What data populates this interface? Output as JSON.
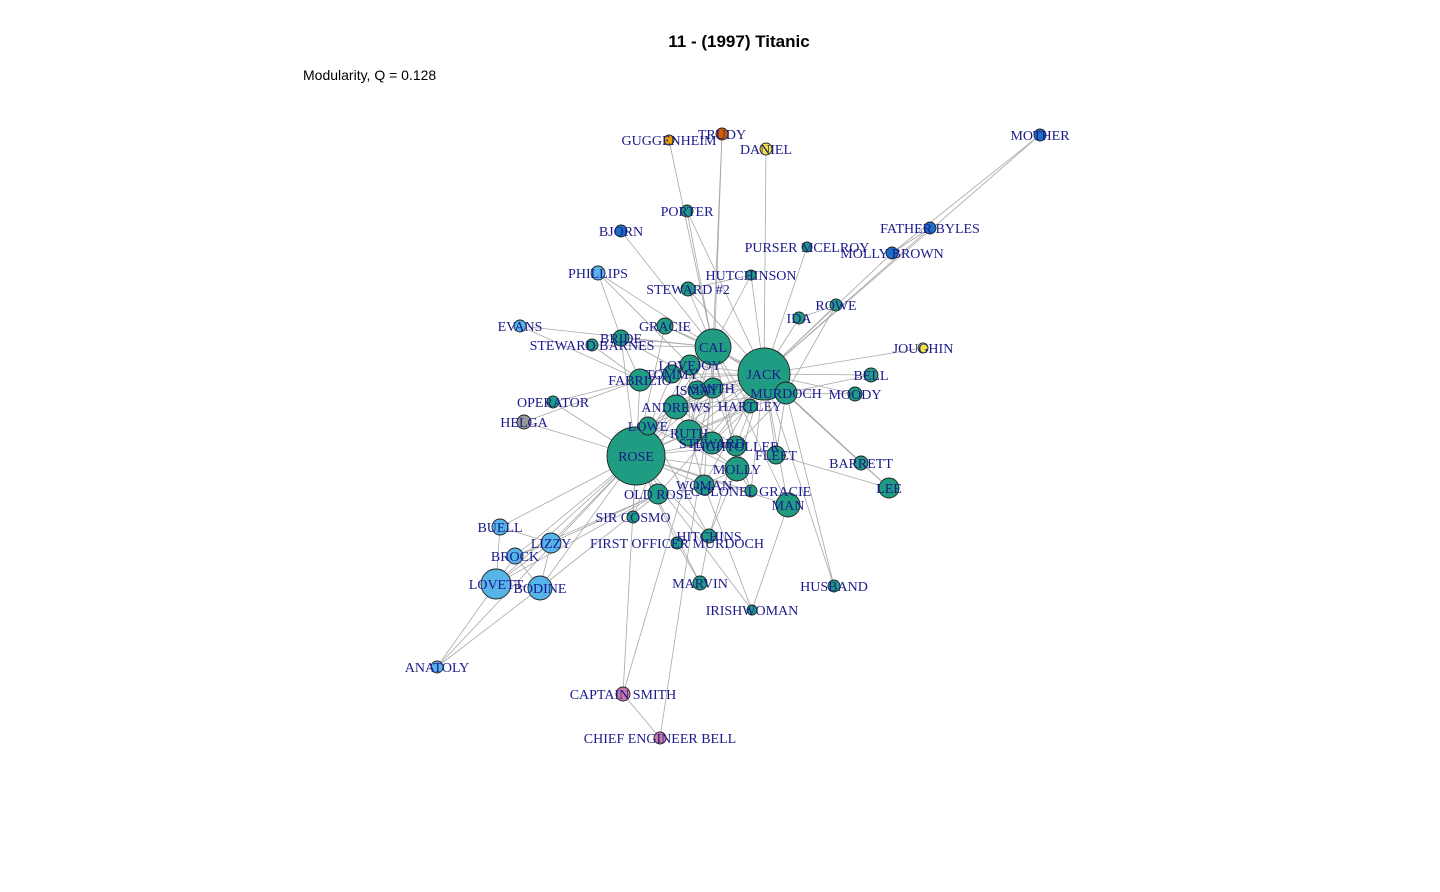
{
  "title": "11 - (1997) Titanic",
  "subtitle": "Modularity, Q = 0.128",
  "colors": {
    "teal": "#1f9c82",
    "blue": "#1b6fc4",
    "lightblue": "#56b4e9",
    "yellow": "#f0e442",
    "orange": "#e69f00",
    "red": "#d55e00",
    "pink": "#cc79a7",
    "gray": "#999999",
    "label": "#1a1a8c",
    "edge": "#a8a8a8"
  },
  "nodes": [
    {
      "id": "GUGGENHEIM",
      "label": "GUGGENHEIM",
      "color": "orange"
    },
    {
      "id": "TRUDY",
      "label": "TRUDY",
      "color": "red"
    },
    {
      "id": "DANIEL",
      "label": "DANIEL",
      "color": "yellow"
    },
    {
      "id": "MOTHER",
      "label": "MOTHER",
      "color": "blue"
    },
    {
      "id": "PORTER",
      "label": "PORTER",
      "color": "teal"
    },
    {
      "id": "BJORN",
      "label": "BJORN",
      "color": "blue"
    },
    {
      "id": "FATHER BYLES",
      "label": "FATHER BYLES",
      "color": "blue"
    },
    {
      "id": "PURSER MCELROY",
      "label": "PURSER MCELROY",
      "color": "teal"
    },
    {
      "id": "MOLLY BROWN",
      "label": "MOLLY BROWN",
      "color": "blue"
    },
    {
      "id": "PHILLIPS",
      "label": "PHILLIPS",
      "color": "lightblue"
    },
    {
      "id": "HUTCHINSON",
      "label": "HUTCHINSON",
      "color": "teal"
    },
    {
      "id": "STEWARD #2",
      "label": "STEWARD #2",
      "color": "teal"
    },
    {
      "id": "ROWE",
      "label": "ROWE",
      "color": "teal"
    },
    {
      "id": "IDA",
      "label": "IDA",
      "color": "teal"
    },
    {
      "id": "EVANS",
      "label": "EVANS",
      "color": "lightblue"
    },
    {
      "id": "GRACIE",
      "label": "GRACIE",
      "color": "teal"
    },
    {
      "id": "BRIDE",
      "label": "BRIDE",
      "color": "teal"
    },
    {
      "id": "STEWARD BARNES",
      "label": "STEWARD BARNES",
      "color": "teal"
    },
    {
      "id": "CAL",
      "label": "CAL",
      "color": "teal"
    },
    {
      "id": "JOUGHIN",
      "label": "JOUGHIN",
      "color": "yellow"
    },
    {
      "id": "LOVEJOY",
      "label": "LOVEJOY",
      "color": "teal"
    },
    {
      "id": "TOMMY",
      "label": "TOMMY",
      "color": "teal"
    },
    {
      "id": "JACK",
      "label": "JACK",
      "color": "teal"
    },
    {
      "id": "BELL",
      "label": "BELL",
      "color": "teal"
    },
    {
      "id": "FABRIZIO",
      "label": "FABRIZIO",
      "color": "teal"
    },
    {
      "id": "SMITH",
      "label": "SMITH",
      "color": "teal"
    },
    {
      "id": "ISMAY",
      "label": "ISMAY",
      "color": "teal"
    },
    {
      "id": "MURDOCH",
      "label": "MURDOCH",
      "color": "teal"
    },
    {
      "id": "MOODY",
      "label": "MOODY",
      "color": "teal"
    },
    {
      "id": "OPERATOR",
      "label": "OPERATOR",
      "color": "teal"
    },
    {
      "id": "ANDREWS",
      "label": "ANDREWS",
      "color": "teal"
    },
    {
      "id": "HARTLEY",
      "label": "HARTLEY",
      "color": "teal"
    },
    {
      "id": "HELGA",
      "label": "HELGA",
      "color": "gray"
    },
    {
      "id": "LOWE",
      "label": "LOWE",
      "color": "teal"
    },
    {
      "id": "RUTH",
      "label": "RUTH",
      "color": "teal"
    },
    {
      "id": "STEWARD",
      "label": "STEWARD",
      "color": "teal"
    },
    {
      "id": "LIGHTOLLER",
      "label": "LIGHTOLLER",
      "color": "teal"
    },
    {
      "id": "FLEET",
      "label": "FLEET",
      "color": "teal"
    },
    {
      "id": "ROSE",
      "label": "ROSE",
      "color": "teal"
    },
    {
      "id": "MOLLY",
      "label": "MOLLY",
      "color": "teal"
    },
    {
      "id": "BARRETT",
      "label": "BARRETT",
      "color": "teal"
    },
    {
      "id": "WOMAN",
      "label": "WOMAN",
      "color": "teal"
    },
    {
      "id": "LEE",
      "label": "LEE",
      "color": "teal"
    },
    {
      "id": "OLD ROSE",
      "label": "OLD ROSE",
      "color": "teal"
    },
    {
      "id": "COLONEL GRACIE",
      "label": "COLONEL GRACIE",
      "color": "teal"
    },
    {
      "id": "MAN",
      "label": "MAN",
      "color": "teal"
    },
    {
      "id": "SIR COSMO",
      "label": "SIR COSMO",
      "color": "teal"
    },
    {
      "id": "BUELL",
      "label": "BUELL",
      "color": "lightblue"
    },
    {
      "id": "LIZZY",
      "label": "LIZZY",
      "color": "lightblue"
    },
    {
      "id": "FIRST OFFICER MURDOCH",
      "label": "FIRST OFFICER MURDOCH",
      "color": "teal"
    },
    {
      "id": "HITCHINS",
      "label": "HITCHINS",
      "color": "teal"
    },
    {
      "id": "BROCK",
      "label": "BROCK",
      "color": "lightblue"
    },
    {
      "id": "LOVETT",
      "label": "LOVETT",
      "color": "lightblue"
    },
    {
      "id": "BODINE",
      "label": "BODINE",
      "color": "lightblue"
    },
    {
      "id": "MARVIN",
      "label": "MARVIN",
      "color": "teal"
    },
    {
      "id": "HUSBAND",
      "label": "HUSBAND",
      "color": "teal"
    },
    {
      "id": "IRISHWOMAN",
      "label": "IRISHWOMAN",
      "color": "teal"
    },
    {
      "id": "ANATOLY",
      "label": "ANATOLY",
      "color": "lightblue"
    },
    {
      "id": "CAPTAIN SMITH",
      "label": "CAPTAIN SMITH",
      "color": "pink"
    },
    {
      "id": "CHIEF ENGINEER BELL",
      "label": "CHIEF ENGINEER BELL",
      "color": "pink"
    }
  ],
  "edges": [
    [
      "ROSE",
      "JACK"
    ],
    [
      "ROSE",
      "CAL"
    ],
    [
      "ROSE",
      "RUTH"
    ],
    [
      "ROSE",
      "LOVEJOY"
    ],
    [
      "ROSE",
      "ANDREWS"
    ],
    [
      "ROSE",
      "MOLLY"
    ],
    [
      "ROSE",
      "FABRIZIO"
    ],
    [
      "ROSE",
      "TOMMY"
    ],
    [
      "ROSE",
      "ISMAY"
    ],
    [
      "ROSE",
      "SMITH"
    ],
    [
      "ROSE",
      "MURDOCH"
    ],
    [
      "ROSE",
      "LOWE"
    ],
    [
      "ROSE",
      "OLD ROSE"
    ],
    [
      "ROSE",
      "LOVETT"
    ],
    [
      "ROSE",
      "BODINE"
    ],
    [
      "ROSE",
      "BROCK"
    ],
    [
      "ROSE",
      "LIZZY"
    ],
    [
      "ROSE",
      "BUELL"
    ],
    [
      "ROSE",
      "ANATOLY"
    ],
    [
      "ROSE",
      "HELGA"
    ],
    [
      "ROSE",
      "OPERATOR"
    ],
    [
      "ROSE",
      "SIR COSMO"
    ],
    [
      "ROSE",
      "FIRST OFFICER MURDOCH"
    ],
    [
      "ROSE",
      "HITCHINS"
    ],
    [
      "ROSE",
      "MAN"
    ],
    [
      "ROSE",
      "WOMAN"
    ],
    [
      "ROSE",
      "STEWARD"
    ],
    [
      "ROSE",
      "LIGHTOLLER"
    ],
    [
      "ROSE",
      "HARTLEY"
    ],
    [
      "ROSE",
      "GRACIE"
    ],
    [
      "ROSE",
      "BRIDE"
    ],
    [
      "ROSE",
      "MARVIN"
    ],
    [
      "ROSE",
      "CAPTAIN SMITH"
    ],
    [
      "ROSE",
      "COLONEL GRACIE"
    ],
    [
      "ROSE",
      "IRISHWOMAN"
    ],
    [
      "JACK",
      "CAL"
    ],
    [
      "JACK",
      "RUTH"
    ],
    [
      "JACK",
      "LOVEJOY"
    ],
    [
      "JACK",
      "FABRIZIO"
    ],
    [
      "JACK",
      "TOMMY"
    ],
    [
      "JACK",
      "ANDREWS"
    ],
    [
      "JACK",
      "MOLLY"
    ],
    [
      "JACK",
      "MURDOCH"
    ],
    [
      "JACK",
      "MOODY"
    ],
    [
      "JACK",
      "HARTLEY"
    ],
    [
      "JACK",
      "BELL"
    ],
    [
      "JACK",
      "ROWE"
    ],
    [
      "JACK",
      "IDA"
    ],
    [
      "JACK",
      "JOUGHIN"
    ],
    [
      "JACK",
      "MOTHER"
    ],
    [
      "JACK",
      "FATHER BYLES"
    ],
    [
      "JACK",
      "MOLLY BROWN"
    ],
    [
      "JACK",
      "PURSER MCELROY"
    ],
    [
      "JACK",
      "HUTCHINSON"
    ],
    [
      "JACK",
      "PORTER"
    ],
    [
      "JACK",
      "DANIEL"
    ],
    [
      "JACK",
      "BARRETT"
    ],
    [
      "JACK",
      "LEE"
    ],
    [
      "JACK",
      "FLEET"
    ],
    [
      "JACK",
      "MAN"
    ],
    [
      "JACK",
      "HUSBAND"
    ],
    [
      "JACK",
      "STEWARD"
    ],
    [
      "JACK",
      "LIGHTOLLER"
    ],
    [
      "JACK",
      "SMITH"
    ],
    [
      "JACK",
      "ISMAY"
    ],
    [
      "JACK",
      "STEWARD #2"
    ],
    [
      "JACK",
      "GRACIE"
    ],
    [
      "JACK",
      "LOWE"
    ],
    [
      "JACK",
      "WOMAN"
    ],
    [
      "JACK",
      "OLD ROSE"
    ],
    [
      "JACK",
      "COLONEL GRACIE"
    ],
    [
      "CAL",
      "RUTH"
    ],
    [
      "CAL",
      "LOVEJOY"
    ],
    [
      "CAL",
      "ANDREWS"
    ],
    [
      "CAL",
      "ISMAY"
    ],
    [
      "CAL",
      "SMITH"
    ],
    [
      "CAL",
      "GUGGENHEIM"
    ],
    [
      "CAL",
      "TRUDY"
    ],
    [
      "CAL",
      "PORTER"
    ],
    [
      "CAL",
      "BJORN"
    ],
    [
      "CAL",
      "PHILLIPS"
    ],
    [
      "CAL",
      "STEWARD #2"
    ],
    [
      "CAL",
      "HUTCHINSON"
    ],
    [
      "CAL",
      "MURDOCH"
    ],
    [
      "CAL",
      "MOLLY"
    ],
    [
      "CAL",
      "GRACIE"
    ],
    [
      "CAL",
      "EVANS"
    ],
    [
      "CAL",
      "BRIDE"
    ],
    [
      "CAL",
      "STEWARD BARNES"
    ],
    [
      "CAL",
      "FABRIZIO"
    ],
    [
      "CAL",
      "TOMMY"
    ],
    [
      "CAL",
      "HARTLEY"
    ],
    [
      "CAL",
      "LIGHTOLLER"
    ],
    [
      "CAL",
      "STEWARD"
    ],
    [
      "CAL",
      "WOMAN"
    ],
    [
      "CAL",
      "MAN"
    ],
    [
      "RUTH",
      "LOVEJOY"
    ],
    [
      "RUTH",
      "MOLLY"
    ],
    [
      "RUTH",
      "ANDREWS"
    ],
    [
      "RUTH",
      "ISMAY"
    ],
    [
      "RUTH",
      "SMITH"
    ],
    [
      "RUTH",
      "LIGHTOLLER"
    ],
    [
      "RUTH",
      "STEWARD"
    ],
    [
      "RUTH",
      "WOMAN"
    ],
    [
      "ANDREWS",
      "ISMAY"
    ],
    [
      "ANDREWS",
      "SMITH"
    ],
    [
      "ANDREWS",
      "MURDOCH"
    ],
    [
      "ANDREWS",
      "LIGHTOLLER"
    ],
    [
      "ANDREWS",
      "HARTLEY"
    ],
    [
      "ANDREWS",
      "LOWE"
    ],
    [
      "ANDREWS",
      "SIR COSMO"
    ],
    [
      "SMITH",
      "ISMAY"
    ],
    [
      "SMITH",
      "MURDOCH"
    ],
    [
      "SMITH",
      "LIGHTOLLER"
    ],
    [
      "SMITH",
      "PHILLIPS"
    ],
    [
      "SMITH",
      "BRIDE"
    ],
    [
      "SMITH",
      "CAPTAIN SMITH"
    ],
    [
      "SMITH",
      "CHIEF ENGINEER BELL"
    ],
    [
      "SMITH",
      "TRUDY"
    ],
    [
      "MURDOCH",
      "MOODY"
    ],
    [
      "MURDOCH",
      "LIGHTOLLER"
    ],
    [
      "MURDOCH",
      "FLEET"
    ],
    [
      "MURDOCH",
      "LEE"
    ],
    [
      "MURDOCH",
      "BARRETT"
    ],
    [
      "MURDOCH",
      "BELL"
    ],
    [
      "MURDOCH",
      "HUSBAND"
    ],
    [
      "MURDOCH",
      "ROWE"
    ],
    [
      "FABRIZIO",
      "TOMMY"
    ],
    [
      "FABRIZIO",
      "HELGA"
    ],
    [
      "FABRIZIO",
      "OPERATOR"
    ],
    [
      "FABRIZIO",
      "BRIDE"
    ],
    [
      "FABRIZIO",
      "STEWARD BARNES"
    ],
    [
      "FABRIZIO",
      "EVANS"
    ],
    [
      "LOVETT",
      "BODINE"
    ],
    [
      "LOVETT",
      "BROCK"
    ],
    [
      "LOVETT",
      "LIZZY"
    ],
    [
      "LOVETT",
      "BUELL"
    ],
    [
      "LOVETT",
      "ANATOLY"
    ],
    [
      "LOVETT",
      "OLD ROSE"
    ],
    [
      "BODINE",
      "BROCK"
    ],
    [
      "BODINE",
      "LIZZY"
    ],
    [
      "BODINE",
      "ANATOLY"
    ],
    [
      "BODINE",
      "OLD ROSE"
    ],
    [
      "BROCK",
      "LIZZY"
    ],
    [
      "BUELL",
      "LIZZY"
    ],
    [
      "BROCK",
      "OLD ROSE"
    ],
    [
      "LIZZY",
      "OLD ROSE"
    ],
    [
      "MOTHER",
      "MOLLY BROWN"
    ],
    [
      "FATHER BYLES",
      "MOLLY BROWN"
    ],
    [
      "LIGHTOLLER",
      "LOWE"
    ],
    [
      "LIGHTOLLER",
      "COLONEL GRACIE"
    ],
    [
      "LIGHTOLLER",
      "HITCHINS"
    ],
    [
      "MOLLY",
      "WOMAN"
    ],
    [
      "MOLLY",
      "HITCHINS"
    ],
    [
      "MOLLY",
      "LOWE"
    ],
    [
      "MOLLY",
      "COLONEL GRACIE"
    ],
    [
      "FLEET",
      "LEE"
    ],
    [
      "HITCHINS",
      "MARVIN"
    ],
    [
      "FIRST OFFICER MURDOCH",
      "MARVIN"
    ],
    [
      "MAN",
      "IRISHWOMAN"
    ],
    [
      "WOMAN",
      "IRISHWOMAN"
    ],
    [
      "LOWE",
      "HITCHINS"
    ],
    [
      "CAPTAIN SMITH",
      "CHIEF ENGINEER BELL"
    ],
    [
      "PHILLIPS",
      "BRIDE"
    ],
    [
      "STEWARD",
      "HARTLEY"
    ],
    [
      "STEWARD #2",
      "HUTCHINSON"
    ],
    [
      "IDA",
      "ROWE"
    ],
    [
      "BARRETT",
      "LEE"
    ]
  ]
}
